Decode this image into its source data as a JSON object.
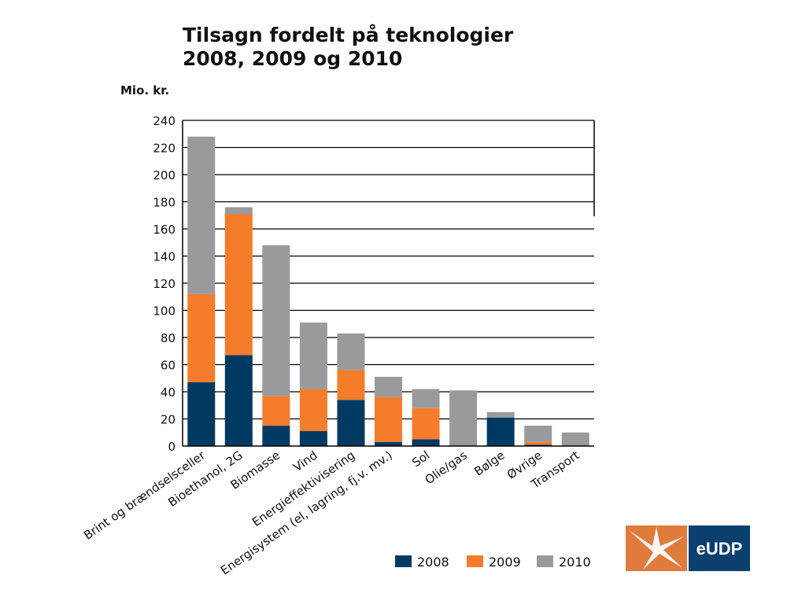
{
  "title_line1": "Tilsagn fordelt på teknologier",
  "title_line2": "2008, 2009 og 2010",
  "unit_label": "Mio. kr.",
  "logo_text": "eUDP",
  "colors": {
    "2008": "#003a63",
    "2009": "#f57c2a",
    "2010": "#999a9c",
    "brand_orange": "#e07b3c",
    "brand_blue": "#0b3f6e"
  },
  "chart_data": {
    "type": "bar",
    "stacked": true,
    "title": "Tilsagn fordelt på teknologier 2008, 2009 og 2010",
    "ylabel": "Mio. kr.",
    "ylim": [
      0,
      240
    ],
    "yticks": [
      0,
      20,
      40,
      60,
      80,
      100,
      120,
      140,
      160,
      180,
      200,
      220,
      240
    ],
    "grid": true,
    "legend_position": "bottom-right",
    "categories": [
      "Brint og brændselsceller",
      "Bioethanol, 2G",
      "Biomasse",
      "Vind",
      "Energieffektivisering",
      "Energisystem (el, lagring, fj.v. mv.)",
      "Sol",
      "Olie/gas",
      "Bølge",
      "Øvrige",
      "Transport"
    ],
    "series": [
      {
        "name": "2008",
        "values": [
          47,
          67,
          15,
          11,
          34,
          3,
          5,
          0,
          21,
          1,
          0
        ]
      },
      {
        "name": "2009",
        "values": [
          65,
          104,
          22,
          31,
          22,
          33,
          23,
          0,
          0,
          2,
          0
        ]
      },
      {
        "name": "2010",
        "values": [
          116,
          5,
          111,
          49,
          27,
          15,
          14,
          41,
          4,
          12,
          10
        ]
      }
    ]
  }
}
